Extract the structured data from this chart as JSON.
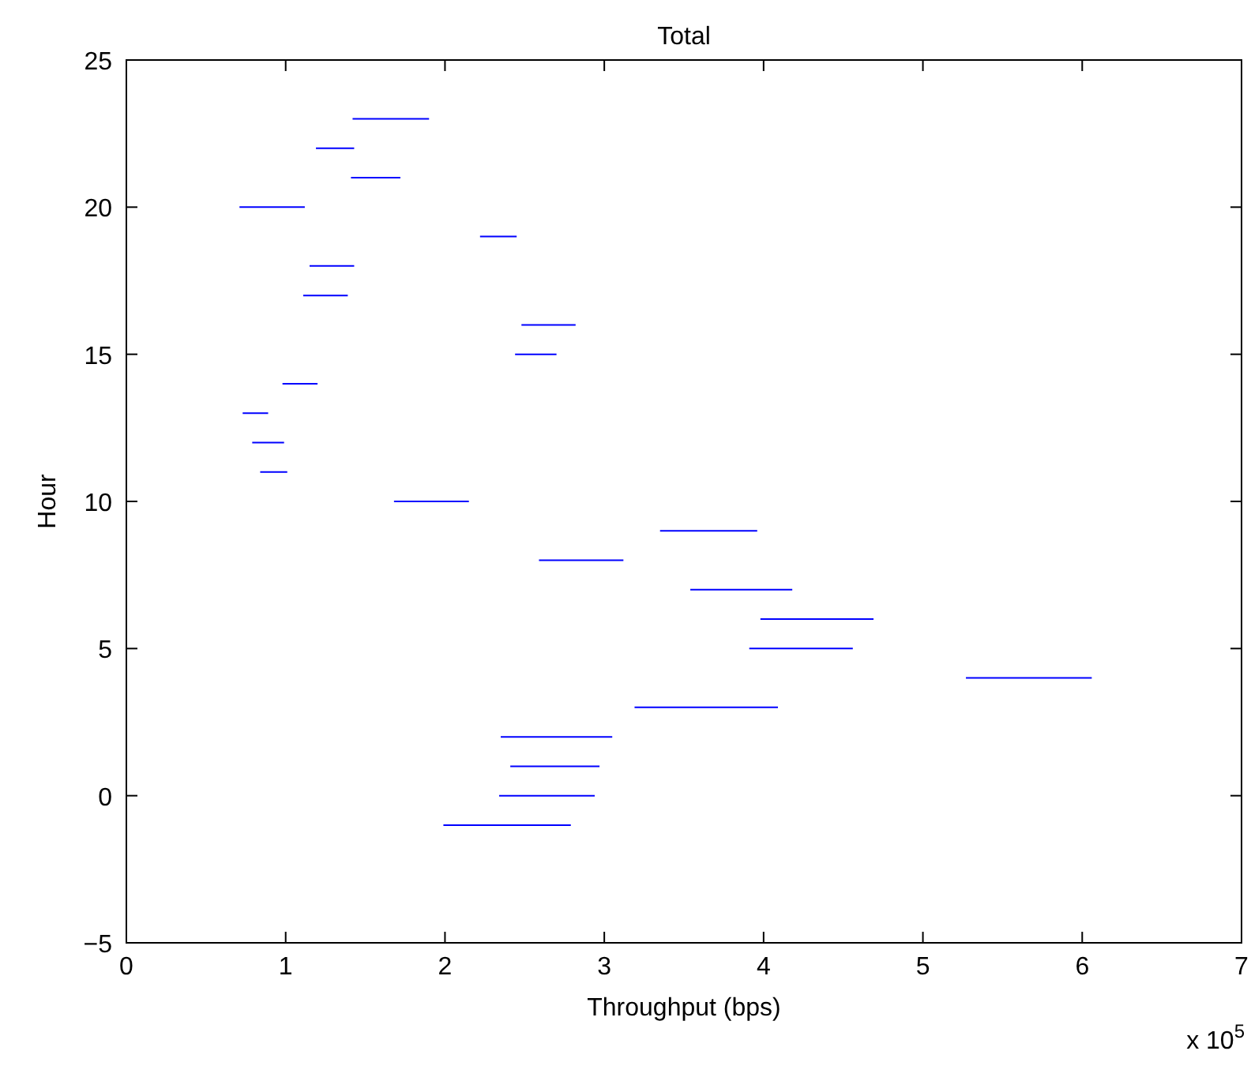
{
  "chart_data": {
    "type": "line",
    "title": "Total",
    "xlabel": "Throughput (bps)",
    "ylabel": "Hour",
    "annotations": [
      "x 10$^{5}$"
    ],
    "marker": "none",
    "series": [
      {
        "color": "#0000ff",
        "x": [
          1.42,
          1.9
        ],
        "values": [
          23,
          23
        ]
      },
      {
        "color": "#0000ff",
        "x": [
          1.19,
          1.43
        ],
        "values": [
          22,
          22
        ]
      },
      {
        "color": "#0000ff",
        "x": [
          1.41,
          1.72
        ],
        "values": [
          21,
          21
        ]
      },
      {
        "color": "#0000ff",
        "x": [
          0.71,
          1.12
        ],
        "values": [
          20,
          20
        ]
      },
      {
        "color": "#0000ff",
        "x": [
          2.22,
          2.45
        ],
        "values": [
          19,
          19
        ]
      },
      {
        "color": "#0000ff",
        "x": [
          1.15,
          1.43
        ],
        "values": [
          18,
          18
        ]
      },
      {
        "color": "#0000ff",
        "x": [
          1.11,
          1.39
        ],
        "values": [
          17,
          17
        ]
      },
      {
        "color": "#0000ff",
        "x": [
          2.48,
          2.82
        ],
        "values": [
          16,
          16
        ]
      },
      {
        "color": "#0000ff",
        "x": [
          2.44,
          2.7
        ],
        "values": [
          15,
          15
        ]
      },
      {
        "color": "#0000ff",
        "x": [
          0.98,
          1.2
        ],
        "values": [
          14,
          14
        ]
      },
      {
        "color": "#0000ff",
        "x": [
          0.73,
          0.89
        ],
        "values": [
          13,
          13
        ]
      },
      {
        "color": "#0000ff",
        "x": [
          0.79,
          0.99
        ],
        "values": [
          12,
          12
        ]
      },
      {
        "color": "#0000ff",
        "x": [
          0.84,
          1.01
        ],
        "values": [
          11,
          11
        ]
      },
      {
        "color": "#0000ff",
        "x": [
          1.68,
          2.15
        ],
        "values": [
          10,
          10
        ]
      },
      {
        "color": "#0000ff",
        "x": [
          3.35,
          3.96
        ],
        "values": [
          9,
          9
        ]
      },
      {
        "color": "#0000ff",
        "x": [
          2.59,
          3.12
        ],
        "values": [
          8,
          8
        ]
      },
      {
        "color": "#0000ff",
        "x": [
          3.54,
          4.18
        ],
        "values": [
          7,
          7
        ]
      },
      {
        "color": "#0000ff",
        "x": [
          3.98,
          4.69
        ],
        "values": [
          6,
          6
        ]
      },
      {
        "color": "#0000ff",
        "x": [
          3.91,
          4.56
        ],
        "values": [
          5,
          5
        ]
      },
      {
        "color": "#0000ff",
        "x": [
          5.27,
          6.06
        ],
        "values": [
          4,
          4
        ]
      },
      {
        "color": "#0000ff",
        "x": [
          3.19,
          4.09
        ],
        "values": [
          3,
          3
        ]
      },
      {
        "color": "#0000ff",
        "x": [
          2.35,
          3.05
        ],
        "values": [
          2,
          2
        ]
      },
      {
        "color": "#0000ff",
        "x": [
          2.41,
          2.97
        ],
        "values": [
          1,
          1
        ]
      },
      {
        "color": "#0000ff",
        "x": [
          2.34,
          2.94
        ],
        "values": [
          0,
          0
        ]
      },
      {
        "color": "#0000ff",
        "x": [
          1.99,
          2.79
        ],
        "values": [
          -1,
          -1
        ]
      }
    ],
    "xlim": [
      0,
      7
    ],
    "xticks": [
      0,
      1,
      2,
      3,
      4,
      5,
      6,
      7
    ],
    "ylim": [
      -5,
      25
    ],
    "yticks": [
      -5,
      0,
      5,
      10,
      15,
      20,
      25
    ]
  }
}
